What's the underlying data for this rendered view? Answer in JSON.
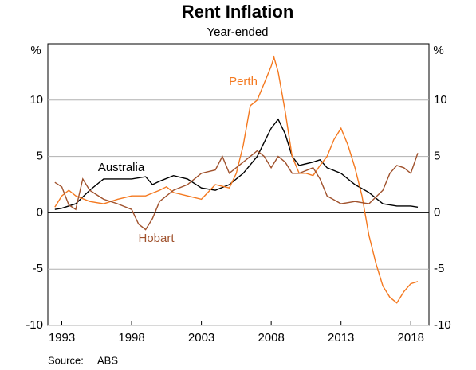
{
  "chart_data": {
    "type": "line",
    "title": "Rent Inflation",
    "subtitle": "Year-ended",
    "y_unit": "%",
    "source_label": "Source:",
    "source": "ABS",
    "xlim": [
      1992,
      2019.3
    ],
    "xticks": [
      1993,
      1998,
      2003,
      2008,
      2013,
      2018
    ],
    "ylim": [
      -10,
      15
    ],
    "yticks": [
      -10,
      -5,
      0,
      5,
      10
    ],
    "y2lim": [
      -10,
      15
    ],
    "y2ticks": [
      -10,
      -5,
      0,
      5,
      10
    ],
    "grid": true,
    "series": [
      {
        "name": "Australia",
        "color": "#000000",
        "x": [
          1992.5,
          1993,
          1994,
          1995,
          1996,
          1997,
          1998,
          1999,
          1999.5,
          2000,
          2001,
          2002,
          2003,
          2004,
          2005,
          2006,
          2007,
          2008,
          2008.5,
          2009,
          2009.5,
          2010,
          2011,
          2011.5,
          2012,
          2013,
          2014,
          2015,
          2016,
          2017,
          2018,
          2018.5
        ],
        "values": [
          0.3,
          0.4,
          0.8,
          2,
          3,
          3,
          3,
          3.2,
          2.5,
          2.8,
          3.3,
          3,
          2.2,
          2,
          2.5,
          3.5,
          5,
          7.5,
          8.3,
          7,
          5,
          4.2,
          4.5,
          4.7,
          4,
          3.5,
          2.5,
          1.8,
          0.8,
          0.6,
          0.6,
          0.5
        ]
      },
      {
        "name": "Perth",
        "color": "#f47920",
        "x": [
          1992.5,
          1993,
          1993.5,
          1994,
          1995,
          1996,
          1997,
          1998,
          1999,
          2000,
          2000.5,
          2001,
          2002,
          2003,
          2004,
          2005,
          2005.5,
          2006,
          2006.5,
          2007,
          2007.5,
          2008,
          2008.2,
          2008.5,
          2009,
          2009.5,
          2010,
          2010.5,
          2011,
          2011.5,
          2012,
          2012.5,
          2013,
          2013.5,
          2014,
          2014.5,
          2015,
          2015.5,
          2016,
          2016.5,
          2017,
          2017.5,
          2018,
          2018.5
        ],
        "values": [
          0.5,
          1.5,
          2,
          1.5,
          1,
          0.8,
          1.2,
          1.5,
          1.5,
          2,
          2.3,
          1.8,
          1.5,
          1.2,
          2.5,
          2.2,
          3.5,
          6,
          9.5,
          10,
          11.5,
          13,
          13.8,
          12.5,
          9,
          5,
          3.5,
          3.5,
          3.3,
          4.2,
          5,
          6.5,
          7.5,
          6,
          4,
          1.5,
          -2,
          -4.5,
          -6.5,
          -7.5,
          -8,
          -7,
          -6.3,
          -6.1
        ]
      },
      {
        "name": "Hobart",
        "color": "#a0522d",
        "x": [
          1992.5,
          1993,
          1993.5,
          1994,
          1994.5,
          1995,
          1996,
          1997,
          1998,
          1998.5,
          1999,
          1999.5,
          2000,
          2001,
          2002,
          2003,
          2004,
          2004.5,
          2005,
          2006,
          2007,
          2007.5,
          2008,
          2008.5,
          2009,
          2009.5,
          2010,
          2011,
          2011.5,
          2012,
          2013,
          2014,
          2015,
          2016,
          2016.5,
          2017,
          2017.5,
          2018,
          2018.5
        ],
        "values": [
          2.7,
          2.3,
          0.7,
          0.3,
          3,
          2,
          1.2,
          0.8,
          0.3,
          -1,
          -1.5,
          -0.5,
          1,
          2,
          2.5,
          3.5,
          3.8,
          5,
          3.5,
          4.5,
          5.5,
          5,
          4,
          5,
          4.5,
          3.5,
          3.5,
          4,
          3,
          1.5,
          0.8,
          1,
          0.8,
          2,
          3.5,
          4.2,
          4,
          3.5,
          5.3
        ]
      }
    ]
  }
}
